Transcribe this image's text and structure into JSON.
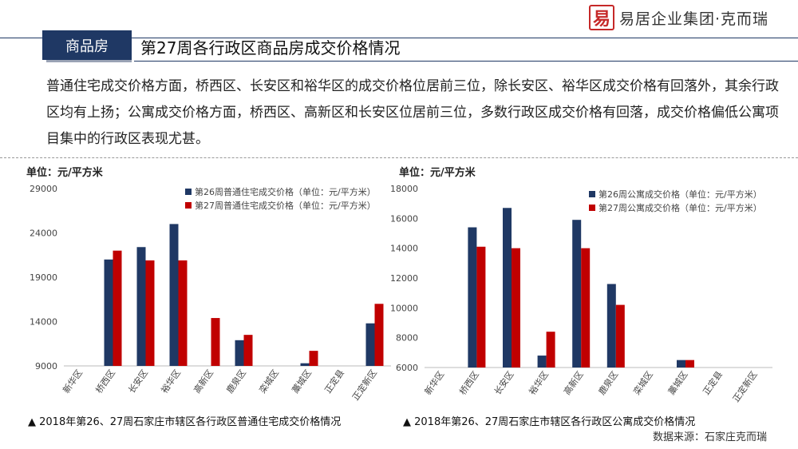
{
  "header": {
    "logo_mark": "易",
    "logo_text": "易居企业集团·克而瑞",
    "tag": "商品房",
    "title": "第27周各行政区商品房成交价格情况"
  },
  "intro": "普通住宅成交价格方面，桥西区、长安区和裕华区的成交价格位居前三位，除长安区、裕华区成交价格有回落外，其余行政区均有上扬；公寓成交价格方面，桥西区、高新区和长安区位居前三位，多数行政区成交价格有回落，成交价格偏低公寓项目集中的行政区表现尤甚。",
  "colors": {
    "navy": "#1f3864",
    "red": "#c00000"
  },
  "charts": {
    "left": {
      "unit": "单位：元/平方米",
      "caption": "▲ 2018年第26、27周石家庄市辖区各行政区普通住宅成交价格情况"
    },
    "right": {
      "unit": "单位：元/平方米",
      "caption": "▲ 2018年第26、27周石家庄市辖区各行政区公寓成交价格情况"
    }
  },
  "source": "数据来源：石家庄克而瑞",
  "chart_data": [
    {
      "type": "bar",
      "categories": [
        "新华区",
        "桥西区",
        "长安区",
        "裕华区",
        "高新区",
        "鹿泉区",
        "栾城区",
        "藁城区",
        "正定县",
        "正定新区"
      ],
      "series": [
        {
          "name": "第26周普通住宅成交价格（单位：元/平方米）",
          "color": "#1f3864",
          "values": [
            null,
            21000,
            22400,
            25000,
            null,
            11900,
            null,
            9300,
            null,
            13800
          ]
        },
        {
          "name": "第27周普通住宅成交价格（单位：元/平方米）",
          "color": "#c00000",
          "values": [
            null,
            22000,
            20900,
            20900,
            14400,
            12500,
            null,
            10700,
            null,
            16000
          ]
        }
      ],
      "ylim": [
        9000,
        29000
      ],
      "yticks": [
        9000,
        14000,
        19000,
        24000,
        29000
      ],
      "ylabel": "单位：元/平方米",
      "legend": "top-right"
    },
    {
      "type": "bar",
      "categories": [
        "新华区",
        "桥西区",
        "长安区",
        "裕华区",
        "高新区",
        "鹿泉区",
        "栾城区",
        "藁城区",
        "正定县",
        "正定新区"
      ],
      "series": [
        {
          "name": "第26周公寓成交价格（单位：元/平方米）",
          "color": "#1f3864",
          "values": [
            null,
            15400,
            16700,
            6800,
            15900,
            11600,
            null,
            6500,
            null,
            null
          ]
        },
        {
          "name": "第27周公寓成交价格（单位：元/平方米）",
          "color": "#c00000",
          "values": [
            null,
            14100,
            14000,
            8400,
            14000,
            10200,
            null,
            6500,
            null,
            null
          ]
        }
      ],
      "ylim": [
        6000,
        18000
      ],
      "yticks": [
        6000,
        8000,
        10000,
        12000,
        14000,
        16000,
        18000
      ],
      "ylabel": "单位：元/平方米",
      "legend": "top-right"
    }
  ]
}
